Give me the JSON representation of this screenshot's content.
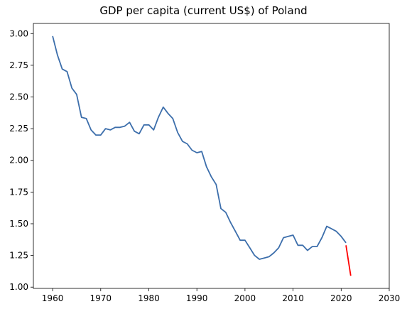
{
  "chart_data": {
    "type": "line",
    "title": "GDP per capita (current US$) of Poland",
    "xlabel": "",
    "ylabel": "",
    "xlim": [
      1956,
      2030
    ],
    "ylim": [
      0.99,
      3.08
    ],
    "x_ticks": [
      1960,
      1970,
      1980,
      1990,
      2000,
      2010,
      2020,
      2030
    ],
    "y_ticks": [
      1.0,
      1.25,
      1.5,
      1.75,
      2.0,
      2.25,
      2.5,
      2.75,
      3.0
    ],
    "grid": false,
    "series": [
      {
        "color": "#3c6eab",
        "x": [
          1960,
          1961,
          1962,
          1963,
          1964,
          1965,
          1966,
          1967,
          1968,
          1969,
          1970,
          1971,
          1972,
          1973,
          1974,
          1975,
          1976,
          1977,
          1978,
          1979,
          1980,
          1981,
          1982,
          1983,
          1984,
          1985,
          1986,
          1987,
          1988,
          1989,
          1990,
          1991,
          1992,
          1993,
          1994,
          1995,
          1996,
          1997,
          1998,
          1999,
          2000,
          2001,
          2002,
          2003,
          2004,
          2005,
          2006,
          2007,
          2008,
          2009,
          2010,
          2011,
          2012,
          2013,
          2014,
          2015,
          2016,
          2017,
          2018,
          2019,
          2020,
          2021
        ],
        "y": [
          2.98,
          2.83,
          2.72,
          2.7,
          2.57,
          2.52,
          2.34,
          2.33,
          2.24,
          2.2,
          2.2,
          2.25,
          2.24,
          2.26,
          2.26,
          2.27,
          2.3,
          2.23,
          2.21,
          2.28,
          2.28,
          2.24,
          2.34,
          2.42,
          2.37,
          2.33,
          2.22,
          2.15,
          2.13,
          2.08,
          2.06,
          2.07,
          1.95,
          1.87,
          1.81,
          1.62,
          1.59,
          1.51,
          1.44,
          1.37,
          1.37,
          1.31,
          1.25,
          1.22,
          1.23,
          1.24,
          1.27,
          1.31,
          1.39,
          1.4,
          1.41,
          1.33,
          1.33,
          1.29,
          1.32,
          1.32,
          1.39,
          1.48,
          1.46,
          1.44,
          1.4,
          1.35
        ]
      },
      {
        "color": "#ff0000",
        "x": [
          2021,
          2022
        ],
        "y": [
          1.33,
          1.09
        ]
      }
    ]
  }
}
